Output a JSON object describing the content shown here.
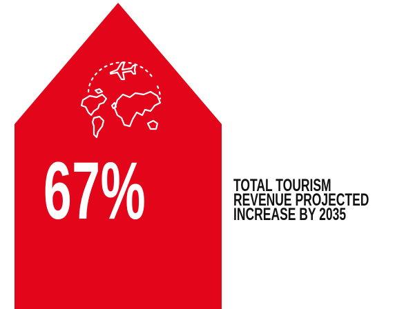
{
  "graphic": {
    "accent_color": "#e3061b",
    "icon": "world-map-plane-icon",
    "stat_value": "67%",
    "caption_lines": [
      "TOTAL TOURISM",
      "REVENUE PROJECTED",
      "INCREASE BY 2035"
    ]
  }
}
